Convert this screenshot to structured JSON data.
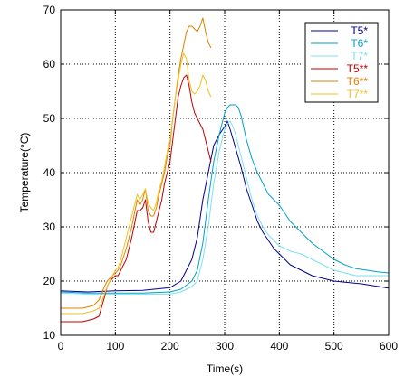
{
  "chart_data": {
    "type": "line",
    "title": "",
    "xlabel": "Time(s)",
    "ylabel": "Temperature(°C)",
    "xlim": [
      0,
      600
    ],
    "ylim": [
      10,
      70
    ],
    "xticks": [
      0,
      100,
      200,
      300,
      400,
      500,
      600
    ],
    "yticks": [
      10,
      20,
      30,
      40,
      50,
      60,
      70
    ],
    "xtick_labels": [
      "0",
      "100",
      "200",
      "300",
      "400",
      "500",
      "600"
    ],
    "ytick_labels": [
      "10",
      "20",
      "30",
      "40",
      "50",
      "60",
      "70"
    ],
    "grid": true,
    "grid_style": "dotted",
    "legend_position": "top-right",
    "series": [
      {
        "name": "T5*",
        "color": "#00008b",
        "x": [
          0,
          50,
          100,
          150,
          200,
          220,
          240,
          250,
          260,
          270,
          280,
          290,
          300,
          305,
          310,
          320,
          330,
          340,
          350,
          360,
          370,
          380,
          390,
          400,
          410,
          420,
          440,
          460,
          480,
          500,
          550,
          600
        ],
        "y": [
          18.2,
          18.0,
          18.2,
          18.3,
          18.8,
          20.0,
          24.0,
          28.0,
          35.0,
          40.0,
          45.0,
          47.0,
          48.5,
          49.5,
          48.0,
          44.5,
          41.0,
          37.0,
          34.0,
          31.0,
          29.0,
          27.5,
          26.0,
          25.0,
          24.0,
          23.0,
          22.0,
          21.0,
          20.5,
          20.0,
          19.5,
          18.7
        ]
      },
      {
        "name": "T6*",
        "color": "#00a0c8",
        "x": [
          0,
          50,
          100,
          150,
          200,
          220,
          240,
          250,
          260,
          270,
          280,
          290,
          300,
          305,
          310,
          315,
          320,
          325,
          330,
          340,
          350,
          360,
          370,
          380,
          400,
          420,
          440,
          460,
          480,
          500,
          520,
          540,
          560,
          580,
          600
        ],
        "y": [
          18.0,
          17.8,
          17.8,
          17.8,
          18.0,
          18.5,
          20.0,
          22.0,
          27.0,
          35.0,
          42.0,
          47.0,
          51.0,
          52.0,
          52.5,
          52.5,
          52.5,
          52.0,
          50.5,
          46.0,
          42.5,
          40.0,
          38.0,
          36.0,
          34.0,
          31.0,
          29.0,
          27.0,
          25.5,
          24.0,
          23.0,
          22.3,
          22.0,
          21.7,
          21.5
        ]
      },
      {
        "name": "T7*",
        "color": "#7fe0f0",
        "x": [
          0,
          50,
          100,
          150,
          200,
          220,
          240,
          250,
          260,
          270,
          280,
          290,
          300,
          305,
          310,
          315,
          320,
          330,
          340,
          350,
          360,
          370,
          380,
          390,
          400,
          420,
          440,
          460,
          480,
          500,
          520,
          540,
          560,
          580,
          600
        ],
        "y": [
          17.8,
          17.6,
          17.6,
          17.6,
          17.6,
          18.0,
          19.0,
          20.0,
          24.0,
          30.0,
          38.0,
          44.0,
          48.0,
          49.0,
          49.5,
          48.5,
          47.0,
          43.0,
          39.0,
          35.0,
          32.0,
          30.0,
          28.5,
          27.5,
          26.5,
          25.5,
          25.0,
          24.0,
          23.0,
          22.0,
          21.5,
          21.0,
          21.0,
          21.0,
          21.0
        ]
      },
      {
        "name": "T5**",
        "color": "#c00000",
        "x": [
          0,
          20,
          40,
          60,
          70,
          80,
          85,
          90,
          95,
          100,
          105,
          110,
          120,
          130,
          140,
          145,
          150,
          155,
          160,
          165,
          170,
          175,
          180,
          185,
          190,
          195,
          200,
          205,
          210,
          215,
          220,
          225,
          230,
          235,
          240,
          245,
          250,
          255,
          260,
          265,
          270,
          275
        ],
        "y": [
          12.5,
          12.5,
          12.5,
          13.0,
          13.5,
          17.0,
          19.0,
          20.0,
          20.5,
          21.0,
          21.0,
          22.0,
          24.0,
          28.0,
          33.0,
          33.0,
          33.5,
          35.0,
          31.0,
          29.0,
          29.0,
          31.0,
          33.0,
          35.0,
          38.0,
          40.0,
          42.0,
          46.0,
          50.0,
          54.0,
          56.0,
          57.5,
          58.0,
          56.0,
          53.0,
          51.0,
          50.0,
          49.0,
          48.0,
          46.0,
          44.0,
          42.0
        ]
      },
      {
        "name": "T6**",
        "color": "#e08000",
        "x": [
          0,
          20,
          40,
          60,
          70,
          80,
          85,
          90,
          95,
          100,
          105,
          110,
          120,
          130,
          140,
          145,
          150,
          155,
          160,
          165,
          170,
          175,
          180,
          185,
          190,
          195,
          200,
          205,
          210,
          215,
          220,
          225,
          230,
          235,
          240,
          245,
          250,
          255,
          260,
          265,
          270,
          275
        ],
        "y": [
          15.0,
          15.0,
          15.0,
          15.5,
          16.5,
          19.0,
          20.0,
          20.5,
          21.0,
          21.5,
          22.0,
          23.0,
          26.0,
          30.0,
          35.0,
          34.0,
          35.0,
          37.0,
          33.0,
          32.0,
          32.0,
          33.5,
          36.0,
          38.0,
          40.0,
          43.0,
          45.0,
          50.0,
          54.0,
          58.0,
          61.0,
          63.5,
          66.0,
          67.0,
          67.0,
          66.5,
          66.0,
          67.0,
          68.5,
          66.0,
          64.0,
          63.0
        ]
      },
      {
        "name": "T7**",
        "color": "#f0c020",
        "x": [
          0,
          20,
          40,
          60,
          70,
          80,
          85,
          90,
          95,
          100,
          105,
          110,
          120,
          130,
          140,
          145,
          150,
          155,
          160,
          165,
          170,
          175,
          180,
          185,
          190,
          195,
          200,
          205,
          210,
          215,
          220,
          225,
          230,
          235,
          240,
          245,
          250,
          255,
          260,
          265,
          270,
          275
        ],
        "y": [
          14.0,
          14.0,
          14.0,
          14.5,
          15.0,
          17.5,
          19.0,
          20.0,
          21.0,
          22.0,
          22.5,
          24.0,
          28.0,
          32.0,
          36.0,
          35.0,
          36.0,
          37.0,
          34.5,
          33.5,
          33.0,
          34.5,
          37.0,
          38.5,
          41.0,
          44.0,
          46.0,
          50.0,
          54.0,
          57.0,
          60.0,
          62.0,
          61.0,
          57.0,
          55.0,
          54.5,
          55.0,
          56.0,
          58.0,
          57.0,
          55.0,
          54.0
        ]
      }
    ]
  }
}
